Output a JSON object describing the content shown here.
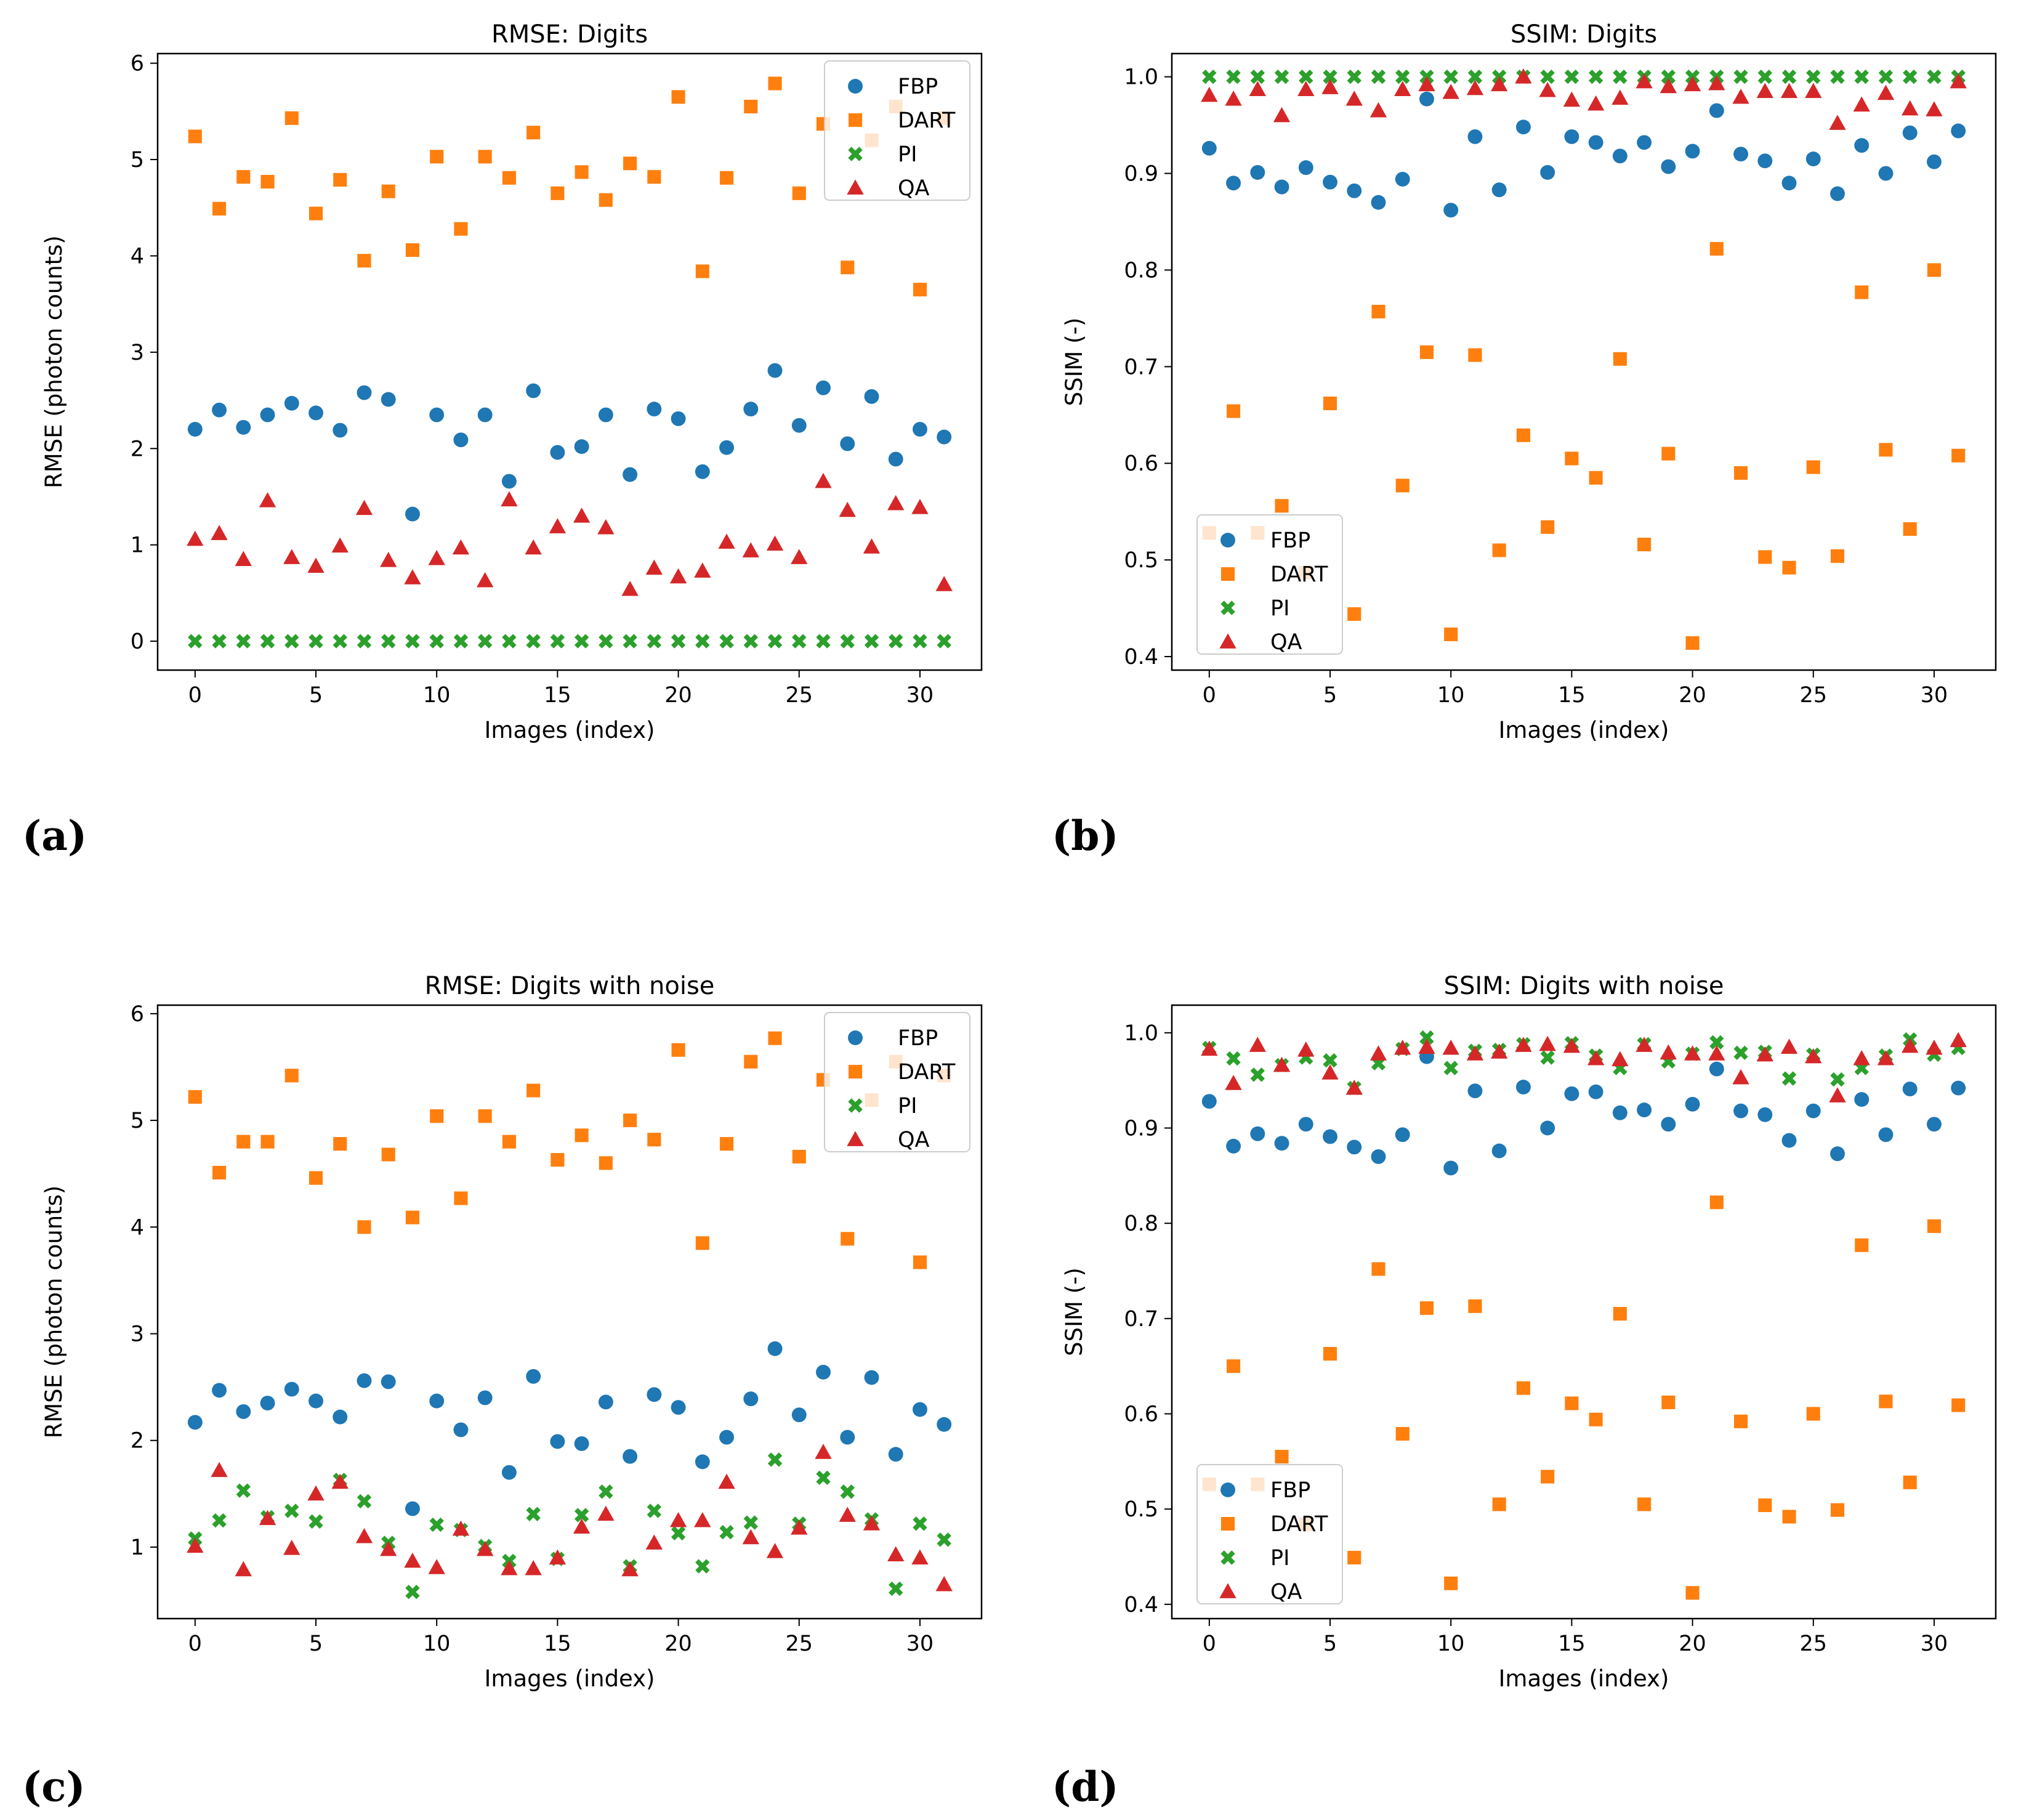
{
  "chart_data": [
    {
      "type": "scatter",
      "panel_label": "(a)",
      "title": "RMSE: Digits",
      "xlabel": "Images (index)",
      "ylabel": "RMSE (photon counts)",
      "xlim": [
        -1.55,
        32.55
      ],
      "ylim": [
        -0.3,
        6.1
      ],
      "xticks": [
        0,
        5,
        10,
        15,
        20,
        25,
        30
      ],
      "yticks": [
        0,
        1,
        2,
        3,
        4,
        5,
        6
      ],
      "legend_position": "top-right",
      "series": [
        {
          "name": "FBP",
          "marker": "circle",
          "color": "#1f77b4",
          "values": [
            2.2,
            2.4,
            2.22,
            2.35,
            2.47,
            2.37,
            2.19,
            2.58,
            2.51,
            1.32,
            2.35,
            2.09,
            2.35,
            1.66,
            2.6,
            1.96,
            2.02,
            2.35,
            1.73,
            2.41,
            2.31,
            1.76,
            2.01,
            2.41,
            2.81,
            2.24,
            2.63,
            2.05,
            2.54,
            1.89,
            2.2,
            2.12
          ]
        },
        {
          "name": "DART",
          "marker": "square",
          "color": "#ff7f0e",
          "values": [
            5.24,
            4.49,
            4.82,
            4.77,
            5.43,
            4.44,
            4.79,
            3.95,
            4.67,
            4.06,
            5.03,
            4.28,
            5.03,
            4.81,
            5.28,
            4.65,
            4.87,
            4.58,
            4.96,
            4.82,
            5.65,
            3.84,
            4.81,
            5.55,
            5.79,
            4.65,
            5.37,
            3.88,
            5.2,
            5.55,
            3.65,
            5.43
          ]
        },
        {
          "name": "PI",
          "marker": "x",
          "color": "#2ca02c",
          "values": [
            0,
            0,
            0,
            0,
            0,
            0,
            0,
            0,
            0,
            0,
            0,
            0,
            0,
            0,
            0,
            0,
            0,
            0,
            0,
            0,
            0,
            0,
            0,
            0,
            0,
            0,
            0,
            0,
            0,
            0,
            0,
            0
          ]
        },
        {
          "name": "QA",
          "marker": "triangle",
          "color": "#d62728",
          "values": [
            1.06,
            1.12,
            0.85,
            1.46,
            0.87,
            0.78,
            0.99,
            1.38,
            0.84,
            0.66,
            0.86,
            0.97,
            0.63,
            1.47,
            0.97,
            1.19,
            1.3,
            1.18,
            0.54,
            0.76,
            0.67,
            0.73,
            1.03,
            0.94,
            1.01,
            0.87,
            1.66,
            1.36,
            0.98,
            1.43,
            1.39,
            0.59
          ]
        }
      ]
    },
    {
      "type": "scatter",
      "panel_label": "(b)",
      "title": "SSIM: Digits",
      "xlabel": "Images (index)",
      "ylabel": "SSIM (-)",
      "xlim": [
        -1.55,
        32.55
      ],
      "ylim": [
        0.386,
        1.024
      ],
      "xticks": [
        0,
        5,
        10,
        15,
        20,
        25,
        30
      ],
      "yticks": [
        0.4,
        0.5,
        0.6,
        0.7,
        0.8,
        0.9,
        1.0
      ],
      "legend_position": "bottom-left",
      "series": [
        {
          "name": "FBP",
          "marker": "circle",
          "color": "#1f77b4",
          "values": [
            0.926,
            0.89,
            0.901,
            0.886,
            0.906,
            0.891,
            0.882,
            0.87,
            0.894,
            0.977,
            0.862,
            0.938,
            0.883,
            0.948,
            0.901,
            0.938,
            0.932,
            0.918,
            0.932,
            0.907,
            0.923,
            0.965,
            0.92,
            0.913,
            0.89,
            0.915,
            0.879,
            0.929,
            0.9,
            0.942,
            0.912,
            0.944
          ]
        },
        {
          "name": "DART",
          "marker": "square",
          "color": "#ff7f0e",
          "values": [
            0.528,
            0.654,
            0.528,
            0.556,
            0.487,
            0.662,
            0.444,
            0.757,
            0.577,
            0.715,
            0.423,
            0.712,
            0.51,
            0.629,
            0.534,
            0.605,
            0.585,
            0.708,
            0.516,
            0.61,
            0.414,
            0.822,
            0.59,
            0.503,
            0.492,
            0.596,
            0.504,
            0.777,
            0.614,
            0.532,
            0.8,
            0.608
          ]
        },
        {
          "name": "PI",
          "marker": "x",
          "color": "#2ca02c",
          "values": [
            1.0,
            1.0,
            1.0,
            1.0,
            1.0,
            1.0,
            1.0,
            1.0,
            1.0,
            1.0,
            1.0,
            1.0,
            1.0,
            1.0,
            1.0,
            1.0,
            1.0,
            1.0,
            1.0,
            1.0,
            1.0,
            1.0,
            1.0,
            1.0,
            1.0,
            1.0,
            1.0,
            1.0,
            1.0,
            1.0,
            1.0,
            1.0
          ]
        },
        {
          "name": "QA",
          "marker": "triangle",
          "color": "#d62728",
          "values": [
            0.981,
            0.977,
            0.987,
            0.96,
            0.987,
            0.989,
            0.977,
            0.965,
            0.987,
            0.992,
            0.984,
            0.988,
            0.992,
            1.0,
            0.986,
            0.976,
            0.972,
            0.978,
            0.995,
            0.99,
            0.992,
            0.993,
            0.979,
            0.985,
            0.985,
            0.985,
            0.952,
            0.971,
            0.983,
            0.967,
            0.966,
            0.995
          ]
        }
      ]
    },
    {
      "type": "scatter",
      "panel_label": "(c)",
      "title": "RMSE: Digits with noise",
      "xlabel": "Images (index)",
      "ylabel": "RMSE (photon counts)",
      "xlim": [
        -1.55,
        32.55
      ],
      "ylim": [
        0.33,
        6.08
      ],
      "xticks": [
        0,
        5,
        10,
        15,
        20,
        25,
        30
      ],
      "yticks": [
        1,
        2,
        3,
        4,
        5,
        6
      ],
      "legend_position": "top-right",
      "series": [
        {
          "name": "FBP",
          "marker": "circle",
          "color": "#1f77b4",
          "values": [
            2.17,
            2.47,
            2.27,
            2.35,
            2.48,
            2.37,
            2.22,
            2.56,
            2.55,
            1.36,
            2.37,
            2.1,
            2.4,
            1.7,
            2.6,
            1.99,
            1.97,
            2.36,
            1.85,
            2.43,
            2.31,
            1.8,
            2.03,
            2.39,
            2.86,
            2.24,
            2.64,
            2.03,
            2.59,
            1.87,
            2.29,
            2.15
          ]
        },
        {
          "name": "DART",
          "marker": "square",
          "color": "#ff7f0e",
          "values": [
            5.22,
            4.51,
            4.8,
            4.8,
            5.42,
            4.46,
            4.78,
            4.0,
            4.68,
            4.09,
            5.04,
            4.27,
            5.04,
            4.8,
            5.28,
            4.63,
            4.86,
            4.6,
            5.0,
            4.82,
            5.66,
            3.85,
            4.78,
            5.55,
            5.77,
            4.66,
            5.38,
            3.89,
            5.19,
            5.55,
            3.67,
            5.42
          ]
        },
        {
          "name": "PI",
          "marker": "x",
          "color": "#2ca02c",
          "values": [
            1.08,
            1.25,
            1.53,
            1.28,
            1.34,
            1.24,
            1.63,
            1.43,
            1.04,
            0.58,
            1.21,
            1.16,
            1.01,
            0.87,
            1.31,
            0.89,
            1.3,
            1.52,
            0.82,
            1.34,
            1.13,
            0.82,
            1.14,
            1.23,
            1.82,
            1.22,
            1.65,
            1.52,
            1.26,
            0.61,
            1.22,
            1.07
          ]
        },
        {
          "name": "QA",
          "marker": "triangle",
          "color": "#d62728",
          "values": [
            1.01,
            1.72,
            0.79,
            1.27,
            0.99,
            1.5,
            1.61,
            1.1,
            0.98,
            0.87,
            0.81,
            1.17,
            0.98,
            0.8,
            0.8,
            0.9,
            1.19,
            1.31,
            0.79,
            1.04,
            1.25,
            1.25,
            1.61,
            1.09,
            0.96,
            1.18,
            1.89,
            1.3,
            1.22,
            0.93,
            0.9,
            0.65
          ]
        }
      ]
    },
    {
      "type": "scatter",
      "panel_label": "(d)",
      "title": "SSIM: Digits with noise",
      "xlabel": "Images (index)",
      "ylabel": "SSIM (-)",
      "xlim": [
        -1.55,
        32.55
      ],
      "ylim": [
        0.385,
        1.029
      ],
      "xticks": [
        0,
        5,
        10,
        15,
        20,
        25,
        30
      ],
      "yticks": [
        0.4,
        0.5,
        0.6,
        0.7,
        0.8,
        0.9,
        1.0
      ],
      "legend_position": "bottom-left",
      "series": [
        {
          "name": "FBP",
          "marker": "circle",
          "color": "#1f77b4",
          "values": [
            0.928,
            0.881,
            0.894,
            0.884,
            0.904,
            0.891,
            0.88,
            0.87,
            0.893,
            0.975,
            0.858,
            0.939,
            0.876,
            0.943,
            0.9,
            0.936,
            0.938,
            0.916,
            0.919,
            0.904,
            0.925,
            0.962,
            0.918,
            0.914,
            0.887,
            0.918,
            0.873,
            0.93,
            0.893,
            0.941,
            0.904,
            0.942
          ]
        },
        {
          "name": "DART",
          "marker": "square",
          "color": "#ff7f0e",
          "values": [
            0.526,
            0.65,
            0.526,
            0.555,
            0.484,
            0.663,
            0.449,
            0.752,
            0.579,
            0.711,
            0.422,
            0.713,
            0.505,
            0.627,
            0.534,
            0.611,
            0.594,
            0.705,
            0.505,
            0.612,
            0.412,
            0.822,
            0.592,
            0.504,
            0.492,
            0.6,
            0.499,
            0.777,
            0.613,
            0.528,
            0.797,
            0.609
          ]
        },
        {
          "name": "PI",
          "marker": "x",
          "color": "#2ca02c",
          "values": [
            0.984,
            0.973,
            0.956,
            0.966,
            0.974,
            0.971,
            0.942,
            0.968,
            0.983,
            0.995,
            0.963,
            0.981,
            0.982,
            0.988,
            0.974,
            0.989,
            0.976,
            0.963,
            0.988,
            0.97,
            0.978,
            0.99,
            0.979,
            0.98,
            0.952,
            0.977,
            0.951,
            0.963,
            0.976,
            0.993,
            0.977,
            0.984
          ]
        },
        {
          "name": "QA",
          "marker": "triangle",
          "color": "#d62728",
          "values": [
            0.983,
            0.947,
            0.987,
            0.966,
            0.982,
            0.958,
            0.942,
            0.978,
            0.984,
            0.985,
            0.984,
            0.978,
            0.98,
            0.987,
            0.988,
            0.986,
            0.973,
            0.972,
            0.987,
            0.979,
            0.978,
            0.978,
            0.953,
            0.977,
            0.985,
            0.975,
            0.934,
            0.973,
            0.973,
            0.986,
            0.984,
            0.992
          ]
        }
      ]
    }
  ]
}
